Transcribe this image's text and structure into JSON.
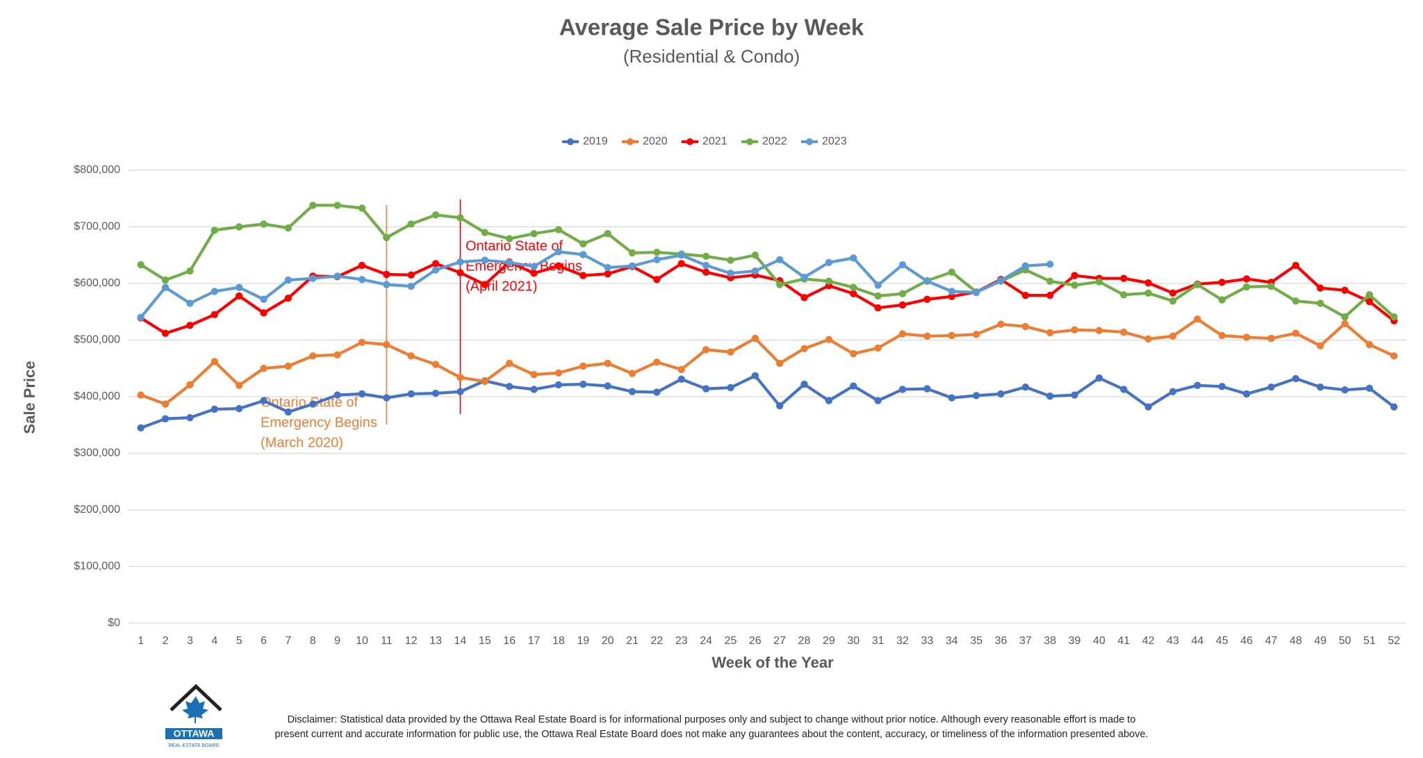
{
  "chart_data": {
    "type": "line",
    "title": "Average Sale Price by Week",
    "subtitle": "(Residential & Condo)",
    "x_label": "Week of the Year",
    "y_label": "Sale Price",
    "categories": [
      "1",
      "2",
      "3",
      "4",
      "5",
      "6",
      "7",
      "8",
      "9",
      "10",
      "11",
      "12",
      "13",
      "14",
      "15",
      "16",
      "17",
      "18",
      "19",
      "20",
      "21",
      "22",
      "23",
      "24",
      "25",
      "26",
      "27",
      "28",
      "29",
      "30",
      "31",
      "32",
      "33",
      "34",
      "35",
      "36",
      "37",
      "38",
      "39",
      "40",
      "41",
      "42",
      "43",
      "44",
      "45",
      "46",
      "47",
      "48",
      "49",
      "50",
      "51",
      "52"
    ],
    "ylim": [
      0,
      800000
    ],
    "yticks": [
      {
        "value": 0,
        "label": "$0"
      },
      {
        "value": 100000,
        "label": "$100,000"
      },
      {
        "value": 200000,
        "label": "$200,000"
      },
      {
        "value": 300000,
        "label": "$300,000"
      },
      {
        "value": 400000,
        "label": "$400,000"
      },
      {
        "value": 500000,
        "label": "$500,000"
      },
      {
        "value": 600000,
        "label": "$600,000"
      },
      {
        "value": 700000,
        "label": "$700,000"
      },
      {
        "value": 800000,
        "label": "$800,000"
      }
    ],
    "grid": true,
    "legend": "top",
    "series": [
      {
        "name": "2019",
        "color": "#4472c4",
        "values": [
          345000,
          361000,
          363000,
          378000,
          379000,
          393000,
          373000,
          387000,
          403000,
          405000,
          398000,
          405000,
          406000,
          409000,
          428000,
          418000,
          413000,
          421000,
          422000,
          419000,
          409000,
          408000,
          431000,
          414000,
          416000,
          437000,
          384000,
          422000,
          393000,
          419000,
          393000,
          413000,
          414000,
          398000,
          402000,
          405000,
          417000,
          401000,
          403000,
          433000,
          413000,
          382000,
          409000,
          420000,
          418000,
          405000,
          417000,
          432000,
          417000,
          412000,
          415000,
          382000
        ]
      },
      {
        "name": "2020",
        "color": "#ed7d31",
        "values": [
          403000,
          387000,
          421000,
          462000,
          420000,
          450000,
          454000,
          472000,
          474000,
          496000,
          492000,
          472000,
          457000,
          434000,
          427000,
          459000,
          439000,
          442000,
          454000,
          459000,
          441000,
          461000,
          448000,
          483000,
          479000,
          503000,
          459000,
          485000,
          501000,
          476000,
          486000,
          511000,
          507000,
          508000,
          510000,
          528000,
          524000,
          513000,
          518000,
          517000,
          514000,
          502000,
          507000,
          537000,
          508000,
          505000,
          503000,
          512000,
          490000,
          529000,
          492000,
          472000
        ]
      },
      {
        "name": "2021",
        "color": "#ff0000",
        "values": [
          539000,
          512000,
          526000,
          545000,
          578000,
          548000,
          574000,
          613000,
          612000,
          632000,
          616000,
          615000,
          635000,
          619000,
          598000,
          638000,
          618000,
          631000,
          614000,
          617000,
          630000,
          607000,
          635000,
          620000,
          610000,
          615000,
          605000,
          575000,
          596000,
          582000,
          557000,
          562000,
          572000,
          577000,
          585000,
          607000,
          579000,
          579000,
          614000,
          609000,
          609000,
          601000,
          583000,
          599000,
          602000,
          608000,
          602000,
          632000,
          592000,
          588000,
          568000,
          534000
        ]
      },
      {
        "name": "2022",
        "color": "#70ad47",
        "values": [
          633000,
          606000,
          622000,
          694000,
          700000,
          705000,
          698000,
          738000,
          738000,
          733000,
          681000,
          705000,
          721000,
          716000,
          690000,
          679000,
          688000,
          695000,
          670000,
          688000,
          654000,
          655000,
          652000,
          648000,
          641000,
          650000,
          598000,
          608000,
          604000,
          593000,
          578000,
          582000,
          605000,
          620000,
          585000,
          604000,
          624000,
          604000,
          597000,
          603000,
          580000,
          583000,
          569000,
          598000,
          571000,
          594000,
          595000,
          569000,
          565000,
          541000,
          580000,
          541000
        ]
      },
      {
        "name": "2023",
        "color": "#5b9bd5",
        "values": [
          540000,
          593000,
          565000,
          586000,
          593000,
          572000,
          606000,
          609000,
          613000,
          607000,
          598000,
          595000,
          624000,
          638000,
          641000,
          637000,
          630000,
          656000,
          651000,
          628000,
          631000,
          642000,
          650000,
          632000,
          618000,
          622000,
          642000,
          611000,
          637000,
          645000,
          597000,
          633000,
          604000,
          586000,
          584000,
          605000,
          631000,
          634000,
          null,
          null,
          null,
          null,
          null,
          null,
          null,
          null,
          null,
          null,
          null,
          null,
          null,
          null
        ]
      }
    ],
    "annotations": [
      {
        "x": 11,
        "color": "#ed7d31",
        "lines": [
          "Ontario State of",
          "Emergency Begins",
          "(March 2020)"
        ]
      },
      {
        "x": 14,
        "color": "#ff0000",
        "lines": [
          "Ontario State of",
          "Emergency Begins",
          "(April 2021)"
        ]
      }
    ]
  },
  "footer": {
    "logo": {
      "name": "OTTAWA",
      "sub": "REAL ESTATE BOARD"
    },
    "disclaimer": [
      "Disclaimer: Statistical data provided by the Ottawa Real Estate Board is for informational purposes only and subject to change without prior notice. Although every reasonable effort is made to",
      "present current and accurate information for public use, the Ottawa Real Estate Board does not make any guarantees about the content, accuracy, or timeliness of the information presented above."
    ]
  }
}
